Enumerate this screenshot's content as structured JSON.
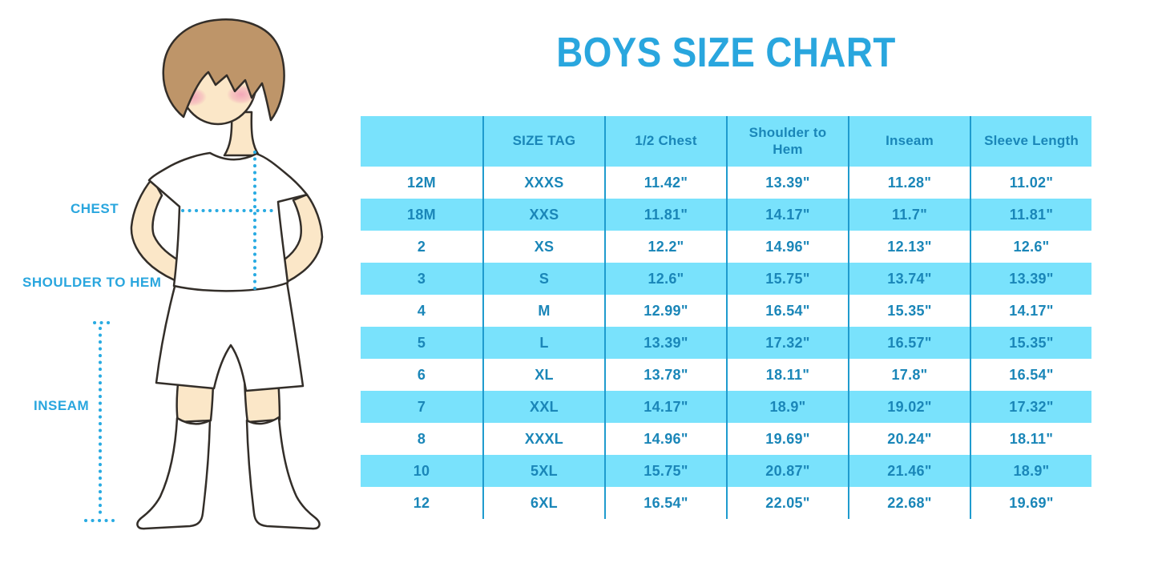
{
  "title": "BOYS SIZE CHART",
  "figure_labels": {
    "chest": "CHEST",
    "shoulder_to_hem": "SHOULDER TO HEM",
    "inseam": "INSEAM"
  },
  "illustration": {
    "description": "boy standing with hands on hips wearing white t-shirt, white shorts and white knee socks",
    "measurement_guides": [
      "chest-width-dotted-line",
      "shoulder-to-hem-dotted-line",
      "inseam-dotted-line"
    ]
  },
  "colors": {
    "title_blue": "#29A6DE",
    "label_blue": "#29A6DE",
    "row_stripe_blue": "#79E2FC",
    "table_text_blue": "#1A86B8",
    "table_line_blue": "#1F9BCE",
    "dotted_line_blue": "#29ABE2"
  },
  "chart_data": {
    "type": "table",
    "title": "BOYS SIZE CHART",
    "columns": [
      "",
      "SIZE TAG",
      "1/2 Chest",
      "Shoulder to Hem",
      "Inseam",
      "Sleeve Length"
    ],
    "rows": [
      [
        "12M",
        "XXXS",
        "11.42\"",
        "13.39\"",
        "11.28\"",
        "11.02\""
      ],
      [
        "18M",
        "XXS",
        "11.81\"",
        "14.17\"",
        "11.7\"",
        "11.81\""
      ],
      [
        "2",
        "XS",
        "12.2\"",
        "14.96\"",
        "12.13\"",
        "12.6\""
      ],
      [
        "3",
        "S",
        "12.6\"",
        "15.75\"",
        "13.74\"",
        "13.39\""
      ],
      [
        "4",
        "M",
        "12.99\"",
        "16.54\"",
        "15.35\"",
        "14.17\""
      ],
      [
        "5",
        "L",
        "13.39\"",
        "17.32\"",
        "16.57\"",
        "15.35\""
      ],
      [
        "6",
        "XL",
        "13.78\"",
        "18.11\"",
        "17.8\"",
        "16.54\""
      ],
      [
        "7",
        "XXL",
        "14.17\"",
        "18.9\"",
        "19.02\"",
        "17.32\""
      ],
      [
        "8",
        "XXXL",
        "14.96\"",
        "19.69\"",
        "20.24\"",
        "18.11\""
      ],
      [
        "10",
        "5XL",
        "15.75\"",
        "20.87\"",
        "21.46\"",
        "18.9\""
      ],
      [
        "12",
        "6XL",
        "16.54\"",
        "22.05\"",
        "22.68\"",
        "19.69\""
      ]
    ]
  }
}
